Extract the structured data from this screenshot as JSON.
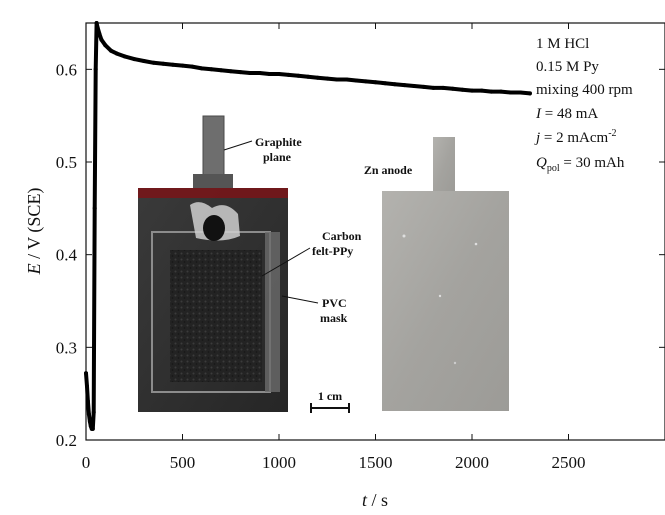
{
  "chart_data": {
    "type": "line",
    "xlabel": {
      "var": "t",
      "unit": " / s"
    },
    "ylabel": {
      "var": "E",
      "unit": " / V (SCE)"
    },
    "xlim": [
      0,
      3000
    ],
    "ylim": [
      0.2,
      0.65
    ],
    "x_ticks": [
      0,
      500,
      1000,
      1500,
      2000,
      2500
    ],
    "y_ticks": [
      0.2,
      0.3,
      0.4,
      0.5,
      0.6
    ],
    "y_tick_labels": [
      "0.2",
      "0.3",
      "0.4",
      "0.5",
      "0.6"
    ],
    "series": [
      {
        "color": "#000000",
        "points": [
          [
            0,
            0.272
          ],
          [
            5,
            0.258
          ],
          [
            10,
            0.242
          ],
          [
            15,
            0.228
          ],
          [
            20,
            0.22
          ],
          [
            25,
            0.215
          ],
          [
            30,
            0.212
          ],
          [
            35,
            0.212
          ],
          [
            40,
            0.23
          ],
          [
            45,
            0.45
          ],
          [
            50,
            0.6
          ],
          [
            55,
            0.65
          ],
          [
            60,
            0.645
          ],
          [
            70,
            0.638
          ],
          [
            80,
            0.632
          ],
          [
            100,
            0.626
          ],
          [
            130,
            0.62
          ],
          [
            160,
            0.617
          ],
          [
            200,
            0.614
          ],
          [
            250,
            0.611
          ],
          [
            300,
            0.609
          ],
          [
            350,
            0.607
          ],
          [
            400,
            0.606
          ],
          [
            450,
            0.605
          ],
          [
            500,
            0.604
          ],
          [
            550,
            0.603
          ],
          [
            600,
            0.601
          ],
          [
            650,
            0.6
          ],
          [
            700,
            0.599
          ],
          [
            750,
            0.598
          ],
          [
            800,
            0.597
          ],
          [
            850,
            0.596
          ],
          [
            900,
            0.596
          ],
          [
            950,
            0.595
          ],
          [
            1000,
            0.595
          ],
          [
            1050,
            0.594
          ],
          [
            1100,
            0.593
          ],
          [
            1150,
            0.592
          ],
          [
            1200,
            0.591
          ],
          [
            1250,
            0.59
          ],
          [
            1300,
            0.589
          ],
          [
            1350,
            0.589
          ],
          [
            1400,
            0.588
          ],
          [
            1450,
            0.587
          ],
          [
            1500,
            0.586
          ],
          [
            1550,
            0.585
          ],
          [
            1600,
            0.584
          ],
          [
            1650,
            0.583
          ],
          [
            1700,
            0.582
          ],
          [
            1750,
            0.581
          ],
          [
            1800,
            0.58
          ],
          [
            1850,
            0.58
          ],
          [
            1900,
            0.579
          ],
          [
            1950,
            0.578
          ],
          [
            2000,
            0.577
          ],
          [
            2050,
            0.577
          ],
          [
            2100,
            0.576
          ],
          [
            2150,
            0.576
          ],
          [
            2200,
            0.575
          ],
          [
            2250,
            0.575
          ],
          [
            2300,
            0.574
          ]
        ]
      }
    ],
    "annotations": [
      "1 M HCl",
      "0.15 M Py",
      "mixing 400 rpm",
      {
        "var": "I",
        "rest": " = 48 mA"
      },
      {
        "var": "j",
        "rest": " = 2 mAcm",
        "sup": "-2"
      },
      {
        "var": "Q",
        "sub": "pol",
        "rest": " = 30 mAh"
      }
    ],
    "inset_labels": {
      "graphite_line1": "Graphite",
      "graphite_line2": "plane",
      "carbon_line1": "Carbon",
      "carbon_line2": "felt-PPy",
      "pvc_line1": "PVC",
      "pvc_line2": "mask",
      "scale_bar": "1 cm",
      "zn_anode": "Zn anode"
    },
    "grid": false,
    "legend": "none"
  },
  "colors": {
    "line": "#000000",
    "axis": "#111111",
    "electrode_dark": "#2e2e2e",
    "electrode_tint": "#7a1418",
    "zn_plate": "#a9a8a4"
  }
}
